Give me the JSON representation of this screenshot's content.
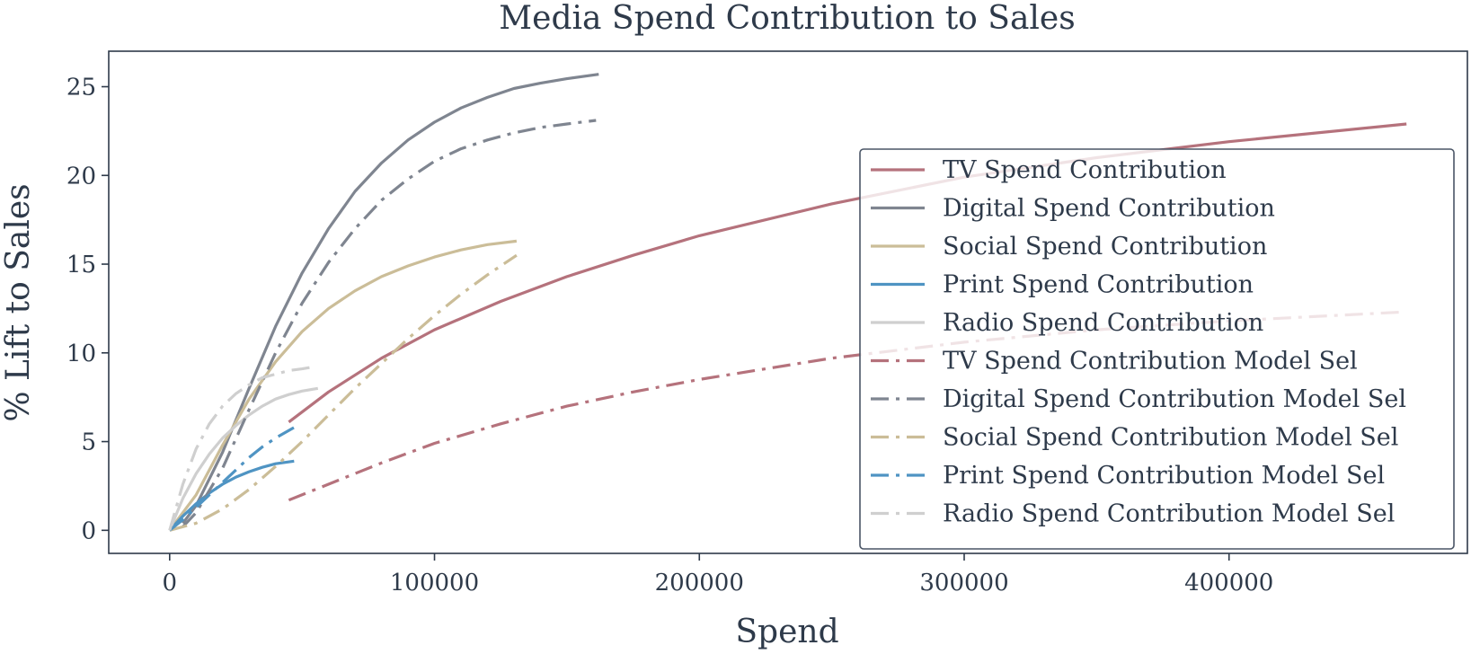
{
  "chart_data": {
    "type": "line",
    "title": "Media Spend Contribution to Sales",
    "xlabel": "Spend",
    "ylabel": "% Lift to Sales",
    "xlim": [
      -23000,
      490000
    ],
    "ylim": [
      -1.3,
      27
    ],
    "xticks": [
      0,
      100000,
      200000,
      300000,
      400000
    ],
    "xtick_labels": [
      "0",
      "100000",
      "200000",
      "300000",
      "400000"
    ],
    "yticks": [
      0,
      5,
      10,
      15,
      20,
      25
    ],
    "ytick_labels": [
      "0",
      "5",
      "10",
      "15",
      "20",
      "25"
    ],
    "grid": false,
    "legend_position": "right",
    "series": [
      {
        "name": "TV Spend Contribution",
        "color": "#b5727c",
        "style": "solid",
        "x": [
          45000,
          60000,
          80000,
          100000,
          125000,
          150000,
          175000,
          200000,
          250000,
          300000,
          350000,
          400000,
          467000
        ],
        "y": [
          6.1,
          7.8,
          9.7,
          11.3,
          12.9,
          14.3,
          15.5,
          16.6,
          18.4,
          19.9,
          21.0,
          21.9,
          22.9
        ]
      },
      {
        "name": "Digital Spend Contribution",
        "color": "#7f8590",
        "style": "solid",
        "x": [
          5000,
          10000,
          20000,
          30000,
          40000,
          50000,
          60000,
          70000,
          80000,
          90000,
          100000,
          110000,
          120000,
          130000,
          140000,
          150000,
          162000
        ],
        "y": [
          0.4,
          1.4,
          4.4,
          8.0,
          11.5,
          14.5,
          17.0,
          19.1,
          20.7,
          22.0,
          23.0,
          23.8,
          24.4,
          24.9,
          25.2,
          25.45,
          25.7
        ]
      },
      {
        "name": "Social Spend Contribution",
        "color": "#cbbd98",
        "style": "solid",
        "x": [
          0,
          10000,
          20000,
          30000,
          40000,
          50000,
          60000,
          70000,
          80000,
          90000,
          100000,
          110000,
          120000,
          131000
        ],
        "y": [
          0,
          2.0,
          4.8,
          7.4,
          9.5,
          11.2,
          12.5,
          13.5,
          14.3,
          14.9,
          15.4,
          15.8,
          16.1,
          16.3
        ]
      },
      {
        "name": "Print Spend Contribution",
        "color": "#4f94c3",
        "style": "solid",
        "x": [
          0,
          5000,
          10000,
          15000,
          20000,
          25000,
          30000,
          35000,
          40000,
          47000
        ],
        "y": [
          0,
          0.8,
          1.5,
          2.1,
          2.6,
          3.0,
          3.3,
          3.55,
          3.75,
          3.9
        ]
      },
      {
        "name": "Radio Spend Contribution",
        "color": "#cfcfcf",
        "style": "solid",
        "x": [
          0,
          5000,
          10000,
          15000,
          20000,
          25000,
          30000,
          35000,
          40000,
          45000,
          50000,
          56000
        ],
        "y": [
          0,
          1.8,
          3.2,
          4.3,
          5.2,
          5.9,
          6.5,
          7.0,
          7.4,
          7.65,
          7.85,
          8.0
        ]
      },
      {
        "name": "TV Spend Contribution Model Sel",
        "color": "#b5727c",
        "style": "dashdot",
        "x": [
          45000,
          60000,
          80000,
          100000,
          125000,
          150000,
          175000,
          200000,
          250000,
          300000,
          350000,
          400000,
          465000
        ],
        "y": [
          1.7,
          2.6,
          3.8,
          4.9,
          6.0,
          7.0,
          7.8,
          8.5,
          9.7,
          10.6,
          11.3,
          11.8,
          12.3
        ]
      },
      {
        "name": "Digital Spend Contribution Model Sel",
        "color": "#7f8590",
        "style": "dashdot",
        "x": [
          5000,
          10000,
          20000,
          30000,
          40000,
          50000,
          60000,
          70000,
          80000,
          90000,
          100000,
          110000,
          120000,
          130000,
          140000,
          150000,
          161000
        ],
        "y": [
          0.2,
          1.0,
          3.5,
          6.8,
          10.0,
          12.8,
          15.1,
          17.0,
          18.6,
          19.8,
          20.8,
          21.5,
          22.0,
          22.4,
          22.7,
          22.9,
          23.1
        ]
      },
      {
        "name": "Social Spend Contribution Model Sel",
        "color": "#cbbd98",
        "style": "dashdot",
        "x": [
          0,
          10000,
          20000,
          30000,
          40000,
          50000,
          60000,
          70000,
          80000,
          90000,
          100000,
          110000,
          120000,
          131000
        ],
        "y": [
          0,
          0.4,
          1.2,
          2.3,
          3.6,
          5.0,
          6.5,
          8.0,
          9.4,
          10.8,
          12.1,
          13.3,
          14.4,
          15.5
        ]
      },
      {
        "name": "Print Spend Contribution Model Sel",
        "color": "#4f94c3",
        "style": "dashdot",
        "x": [
          0,
          5000,
          10000,
          15000,
          20000,
          25000,
          30000,
          35000,
          40000,
          47000
        ],
        "y": [
          0,
          0.6,
          1.3,
          2.0,
          2.7,
          3.4,
          4.1,
          4.7,
          5.2,
          5.8
        ]
      },
      {
        "name": "Radio Spend Contribution Model Sel",
        "color": "#cfcfcf",
        "style": "dashdot",
        "x": [
          0,
          5000,
          10000,
          15000,
          20000,
          25000,
          30000,
          35000,
          40000,
          45000,
          50000,
          54000
        ],
        "y": [
          0,
          2.6,
          4.6,
          6.0,
          7.0,
          7.7,
          8.2,
          8.6,
          8.8,
          9.0,
          9.1,
          9.2
        ]
      }
    ]
  }
}
